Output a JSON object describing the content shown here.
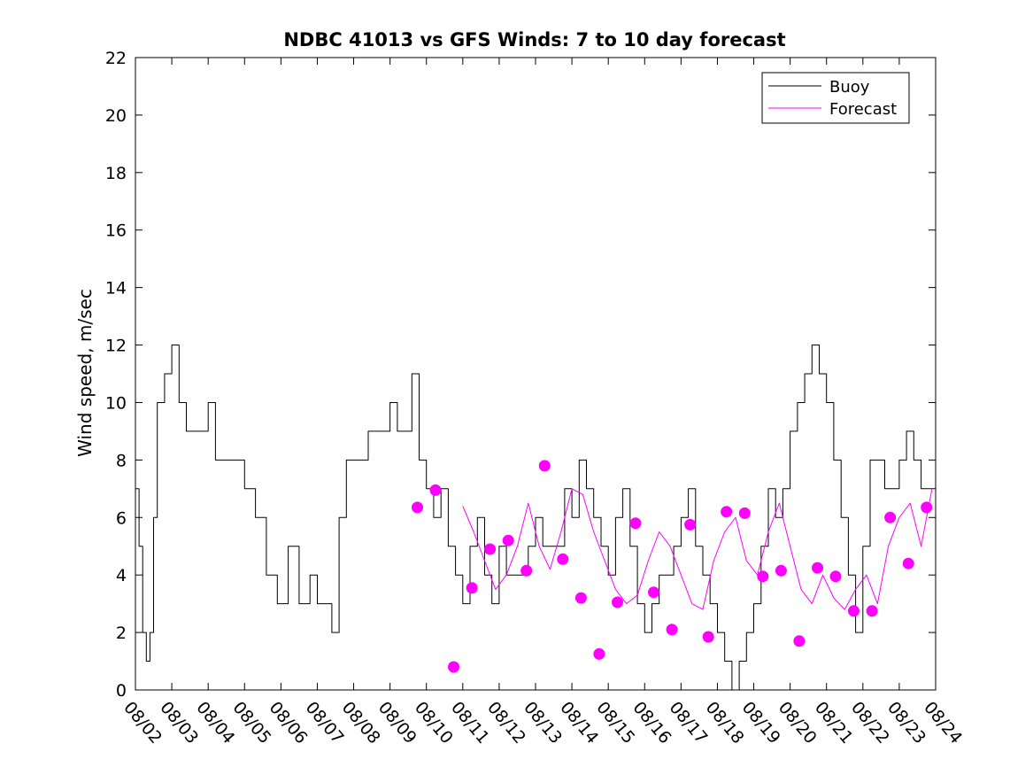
{
  "chart_data": {
    "type": "line",
    "title": "NDBC 41013 vs GFS Winds: 7 to 10 day forecast",
    "xlabel": "",
    "ylabel": "Wind speed, m/sec",
    "ylim": [
      0,
      22
    ],
    "yticks": [
      0,
      2,
      4,
      6,
      8,
      10,
      12,
      14,
      16,
      18,
      20,
      22
    ],
    "xlim_days": [
      0,
      22
    ],
    "xtick_labels": [
      "08/02",
      "08/03",
      "08/04",
      "08/05",
      "08/06",
      "08/07",
      "08/08",
      "08/09",
      "08/10",
      "08/11",
      "08/12",
      "08/13",
      "08/14",
      "08/15",
      "08/16",
      "08/17",
      "08/18",
      "08/19",
      "08/20",
      "08/21",
      "08/22",
      "08/23",
      "08/24"
    ],
    "legend": {
      "position": "top-right",
      "entries": [
        {
          "name": "Buoy",
          "color": "#000000"
        },
        {
          "name": "Forecast",
          "color": "#ff00ff"
        }
      ]
    },
    "series": [
      {
        "name": "Buoy",
        "color": "#000000",
        "x_days": [
          0.0,
          0.1,
          0.2,
          0.3,
          0.4,
          0.5,
          0.6,
          0.8,
          1.0,
          1.2,
          1.4,
          1.6,
          1.8,
          2.0,
          2.2,
          2.4,
          2.6,
          2.8,
          3.0,
          3.3,
          3.6,
          3.9,
          4.2,
          4.5,
          4.8,
          5.0,
          5.2,
          5.4,
          5.6,
          5.8,
          6.0,
          6.2,
          6.4,
          6.6,
          6.8,
          7.0,
          7.2,
          7.4,
          7.6,
          7.8,
          8.0,
          8.2,
          8.4,
          8.6,
          8.8,
          9.0,
          9.2,
          9.4,
          9.6,
          9.8,
          10.0,
          10.2,
          10.4,
          10.6,
          10.8,
          11.0,
          11.2,
          11.4,
          11.6,
          11.8,
          12.0,
          12.2,
          12.4,
          12.6,
          12.8,
          13.0,
          13.2,
          13.4,
          13.6,
          13.8,
          14.0,
          14.2,
          14.4,
          14.6,
          14.8,
          15.0,
          15.2,
          15.4,
          15.6,
          15.8,
          16.0,
          16.2,
          16.4,
          16.6,
          16.8,
          17.0,
          17.2,
          17.4,
          17.6,
          17.8,
          18.0,
          18.2,
          18.4,
          18.6,
          18.8,
          19.0,
          19.2,
          19.4,
          19.6,
          19.8,
          20.0,
          20.2,
          20.4,
          20.6,
          20.8,
          21.0,
          21.2,
          21.4,
          21.6,
          21.8,
          22.0
        ],
        "values": [
          7,
          5,
          2,
          1,
          2,
          6,
          10,
          11,
          12,
          10,
          9,
          9,
          9,
          10,
          8,
          8,
          8,
          8,
          7,
          6,
          4,
          3,
          5,
          3,
          4,
          3,
          3,
          2,
          6,
          8,
          8,
          8,
          9,
          9,
          9,
          10,
          9,
          9,
          11,
          8,
          7,
          6,
          7,
          5,
          4,
          3,
          5,
          6,
          4,
          3,
          5,
          4,
          4,
          4,
          5,
          6,
          5,
          5,
          5,
          7,
          6,
          8,
          7,
          6,
          5,
          4,
          6,
          7,
          5,
          3,
          2,
          3,
          4,
          4,
          5,
          6,
          7,
          5,
          4,
          3,
          2,
          1,
          0,
          1,
          2,
          3,
          5,
          7,
          6,
          7,
          9,
          10,
          11,
          12,
          11,
          10,
          8,
          6,
          4,
          2,
          5,
          8,
          8,
          7,
          7,
          8,
          9,
          8,
          7,
          7,
          7
        ]
      },
      {
        "name": "Forecast",
        "color": "#ff00ff",
        "x_days": [
          9.0,
          9.3,
          9.6,
          9.9,
          10.2,
          10.5,
          10.8,
          11.1,
          11.4,
          11.7,
          12.0,
          12.3,
          12.6,
          12.9,
          13.2,
          13.5,
          13.8,
          14.1,
          14.4,
          14.7,
          15.0,
          15.3,
          15.6,
          15.9,
          16.2,
          16.5,
          16.8,
          17.1,
          17.4,
          17.7,
          18.0,
          18.3,
          18.6,
          18.9,
          19.2,
          19.5,
          19.8,
          20.1,
          20.4,
          20.7,
          21.0,
          21.3,
          21.6,
          21.9
        ],
        "values": [
          6.4,
          5.5,
          4.5,
          3.5,
          4.0,
          5.0,
          6.5,
          5.0,
          4.2,
          5.5,
          7.0,
          6.8,
          5.5,
          4.5,
          3.5,
          3.0,
          3.3,
          4.5,
          5.5,
          5.0,
          4.0,
          3.0,
          2.8,
          4.5,
          5.5,
          6.0,
          4.5,
          4.0,
          5.5,
          6.5,
          5.0,
          3.5,
          3.0,
          4.0,
          3.2,
          2.8,
          3.5,
          4.0,
          3.0,
          5.0,
          6.0,
          6.5,
          5.0,
          7.0
        ]
      }
    ],
    "markers": {
      "name": "Forecast",
      "color": "#ff00ff",
      "x_days": [
        7.75,
        8.25,
        8.75,
        9.25,
        9.75,
        10.25,
        10.75,
        11.25,
        11.75,
        12.25,
        12.75,
        13.25,
        13.75,
        14.25,
        14.75,
        15.25,
        15.75,
        16.25,
        16.75,
        17.25,
        17.75,
        18.25,
        18.75,
        19.25,
        19.75,
        20.25,
        20.75,
        21.25,
        21.75
      ],
      "values": [
        6.35,
        6.95,
        0.8,
        3.55,
        4.9,
        5.2,
        4.15,
        7.8,
        4.55,
        3.2,
        1.25,
        3.05,
        5.8,
        3.4,
        2.1,
        5.75,
        1.85,
        6.2,
        6.15,
        3.95,
        4.15,
        1.7,
        4.25,
        3.95,
        2.75,
        2.75,
        6.0,
        4.4,
        6.35
      ]
    }
  }
}
